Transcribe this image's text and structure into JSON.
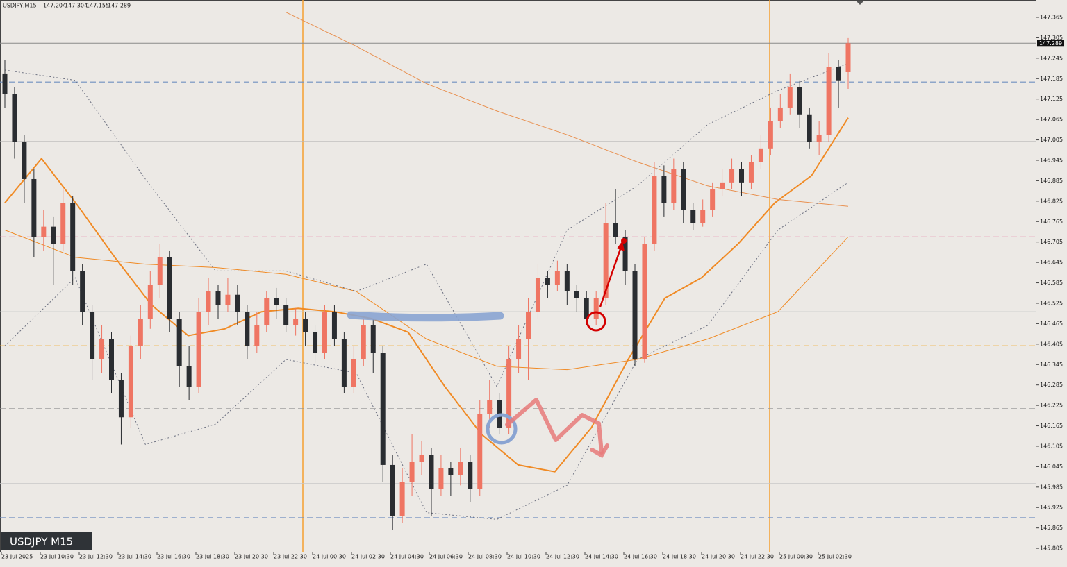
{
  "chart_data": {
    "type": "candlestick",
    "symbol": "USDJPY,M15",
    "ohlc": [
      147.204,
      147.304,
      147.155,
      147.289
    ],
    "badge": "USDJPY M15",
    "bull_color": "#ef7563",
    "bear_color": "#2a2d31",
    "ylim": [
      145.795,
      147.416
    ],
    "yticks": [
      147.365,
      147.305,
      147.245,
      147.185,
      147.125,
      147.065,
      147.005,
      146.945,
      146.885,
      146.825,
      146.765,
      146.705,
      146.645,
      146.585,
      146.525,
      146.465,
      146.405,
      146.345,
      146.285,
      146.225,
      146.165,
      146.105,
      146.045,
      145.985,
      145.925,
      145.865,
      145.805
    ],
    "time_labels": [
      "23 Jul 2025",
      "23 Jul 10:30",
      "23 Jul 12:30",
      "23 Jul 14:30",
      "23 Jul 16:30",
      "23 Jul 18:30",
      "23 Jul 20:30",
      "23 Jul 22:30",
      "24 Jul 00:30",
      "24 Jul 02:30",
      "24 Jul 04:30",
      "24 Jul 06:30",
      "24 Jul 08:30",
      "24 Jul 10:30",
      "24 Jul 12:30",
      "24 Jul 14:30",
      "24 Jul 16:30",
      "24 Jul 18:30",
      "24 Jul 20:30",
      "24 Jul 22:30",
      "25 Jul 00:30",
      "25 Jul 02:30"
    ],
    "candles": [
      [
        147.2,
        147.24,
        147.1,
        147.14
      ],
      [
        147.14,
        147.16,
        146.95,
        147.0
      ],
      [
        147.0,
        147.02,
        146.82,
        146.89
      ],
      [
        146.89,
        146.92,
        146.66,
        146.72
      ],
      [
        146.72,
        146.8,
        146.68,
        146.75
      ],
      [
        146.75,
        146.78,
        146.58,
        146.7
      ],
      [
        146.7,
        146.86,
        146.68,
        146.82
      ],
      [
        146.82,
        146.84,
        146.58,
        146.62
      ],
      [
        146.62,
        146.64,
        146.46,
        146.5
      ],
      [
        146.5,
        146.52,
        146.3,
        146.36
      ],
      [
        146.36,
        146.46,
        146.32,
        146.42
      ],
      [
        146.42,
        146.44,
        146.26,
        146.3
      ],
      [
        146.3,
        146.32,
        146.11,
        146.19
      ],
      [
        146.19,
        146.43,
        146.16,
        146.4
      ],
      [
        146.4,
        146.52,
        146.36,
        146.48
      ],
      [
        146.48,
        146.62,
        146.45,
        146.58
      ],
      [
        146.58,
        146.7,
        146.54,
        146.66
      ],
      [
        146.66,
        146.68,
        146.44,
        146.48
      ],
      [
        146.48,
        146.5,
        146.28,
        146.34
      ],
      [
        146.34,
        146.4,
        146.24,
        146.28
      ],
      [
        146.28,
        146.54,
        146.26,
        146.5
      ],
      [
        146.5,
        146.6,
        146.46,
        146.56
      ],
      [
        146.56,
        146.58,
        146.48,
        146.52
      ],
      [
        146.52,
        146.6,
        146.5,
        146.55
      ],
      [
        146.55,
        146.58,
        146.46,
        146.5
      ],
      [
        146.5,
        146.52,
        146.36,
        146.4
      ],
      [
        146.4,
        146.5,
        146.38,
        146.46
      ],
      [
        146.46,
        146.56,
        146.44,
        146.54
      ],
      [
        146.54,
        146.57,
        146.48,
        146.52
      ],
      [
        146.52,
        146.54,
        146.44,
        146.46
      ],
      [
        146.46,
        146.51,
        146.43,
        146.48
      ],
      [
        146.48,
        146.5,
        146.4,
        146.44
      ],
      [
        146.44,
        146.46,
        146.35,
        146.38
      ],
      [
        146.38,
        146.52,
        146.36,
        146.5
      ],
      [
        146.5,
        146.52,
        146.4,
        146.42
      ],
      [
        146.42,
        146.44,
        146.26,
        146.28
      ],
      [
        146.28,
        146.4,
        146.26,
        146.36
      ],
      [
        146.36,
        146.48,
        146.34,
        146.46
      ],
      [
        146.46,
        146.48,
        146.32,
        146.38
      ],
      [
        146.38,
        146.4,
        146.0,
        146.05
      ],
      [
        146.05,
        146.08,
        145.86,
        145.9
      ],
      [
        145.9,
        146.04,
        145.88,
        146.0
      ],
      [
        146.0,
        146.14,
        145.96,
        146.06
      ],
      [
        146.06,
        146.12,
        146.02,
        146.08
      ],
      [
        146.08,
        146.1,
        145.9,
        145.98
      ],
      [
        145.98,
        146.08,
        145.96,
        146.04
      ],
      [
        146.04,
        146.06,
        145.96,
        146.02
      ],
      [
        146.02,
        146.1,
        145.99,
        146.06
      ],
      [
        146.06,
        146.08,
        145.94,
        145.98
      ],
      [
        145.98,
        146.24,
        145.96,
        146.2
      ],
      [
        146.2,
        146.3,
        146.16,
        146.24
      ],
      [
        146.24,
        146.26,
        146.14,
        146.16
      ],
      [
        146.16,
        146.4,
        146.14,
        146.36
      ],
      [
        146.36,
        146.46,
        146.32,
        146.42
      ],
      [
        146.42,
        146.54,
        146.3,
        146.5
      ],
      [
        146.5,
        146.64,
        146.48,
        146.6
      ],
      [
        146.6,
        146.62,
        146.54,
        146.58
      ],
      [
        146.58,
        146.65,
        146.56,
        146.62
      ],
      [
        146.62,
        146.64,
        146.52,
        146.56
      ],
      [
        146.56,
        146.58,
        146.5,
        146.54
      ],
      [
        146.54,
        146.56,
        146.46,
        146.48
      ],
      [
        146.48,
        146.56,
        146.46,
        146.54
      ],
      [
        146.54,
        146.82,
        146.52,
        146.76
      ],
      [
        146.76,
        146.86,
        146.7,
        146.72
      ],
      [
        146.72,
        146.74,
        146.58,
        146.62
      ],
      [
        146.62,
        146.64,
        146.34,
        146.36
      ],
      [
        146.36,
        146.72,
        146.35,
        146.7
      ],
      [
        146.7,
        146.94,
        146.68,
        146.9
      ],
      [
        146.9,
        146.93,
        146.78,
        146.82
      ],
      [
        146.82,
        146.95,
        146.8,
        146.92
      ],
      [
        146.92,
        146.94,
        146.76,
        146.8
      ],
      [
        146.8,
        146.82,
        146.74,
        146.76
      ],
      [
        146.76,
        146.83,
        146.75,
        146.8
      ],
      [
        146.8,
        146.88,
        146.78,
        146.86
      ],
      [
        146.86,
        146.92,
        146.84,
        146.88
      ],
      [
        146.88,
        146.95,
        146.86,
        146.92
      ],
      [
        146.92,
        146.94,
        146.84,
        146.88
      ],
      [
        146.88,
        146.96,
        146.86,
        146.94
      ],
      [
        146.94,
        147.02,
        146.92,
        146.98
      ],
      [
        146.98,
        147.1,
        146.96,
        147.06
      ],
      [
        147.06,
        147.14,
        147.04,
        147.1
      ],
      [
        147.1,
        147.2,
        147.08,
        147.16
      ],
      [
        147.16,
        147.18,
        147.04,
        147.08
      ],
      [
        147.08,
        147.1,
        146.98,
        147.0
      ],
      [
        147.0,
        147.06,
        146.96,
        147.02
      ],
      [
        147.02,
        147.26,
        147.0,
        147.22
      ],
      [
        147.22,
        147.24,
        147.1,
        147.18
      ],
      [
        147.204,
        147.304,
        147.155,
        147.289
      ]
    ],
    "levels": [
      {
        "value": 147.175,
        "color": "#6f8fc0",
        "style": "dashed"
      },
      {
        "value": 147.0,
        "color": "#b8b8b8",
        "style": "solid"
      },
      {
        "value": 146.72,
        "color": "#e888a8",
        "style": "dashed"
      },
      {
        "value": 146.5,
        "color": "#c8c8c8",
        "style": "solid"
      },
      {
        "value": 146.4,
        "color": "#f0b040",
        "style": "dashed"
      },
      {
        "value": 146.215,
        "color": "#909090",
        "style": "dashed"
      },
      {
        "value": 145.995,
        "color": "#c8c8c8",
        "style": "solid"
      },
      {
        "value": 145.895,
        "color": "#6f8fc0",
        "style": "dashed"
      }
    ],
    "indicators": [
      {
        "color": "#f08a24",
        "width": 2,
        "style": "solid",
        "values": [
          146.82,
          146.95,
          146.81,
          146.66,
          146.52,
          146.43,
          146.45,
          146.5,
          146.51,
          146.5,
          146.48,
          146.44,
          146.28,
          146.14,
          146.05,
          146.03,
          146.16,
          146.36,
          146.54,
          146.6,
          146.7,
          146.82,
          146.9,
          147.07
        ]
      },
      {
        "color": "#f08a24",
        "width": 1,
        "style": "solid",
        "values": [
          146.74,
          146.66,
          146.64,
          146.63,
          146.61,
          146.56,
          146.42,
          146.34,
          146.33,
          146.36,
          146.42,
          146.5,
          146.72
        ]
      },
      {
        "color": "#e89050",
        "width": 1,
        "style": "solid",
        "values": [
          null,
          null,
          null,
          null,
          147.38,
          147.28,
          147.17,
          147.09,
          147.02,
          146.94,
          146.87,
          146.83,
          146.81
        ]
      },
      {
        "color": "#6c7080",
        "width": 1,
        "style": "dotted",
        "values": [
          147.21,
          147.18,
          146.89,
          146.62,
          146.62,
          146.56,
          146.64,
          146.28,
          146.74,
          146.87,
          147.05,
          147.15,
          147.23
        ]
      },
      {
        "color": "#6c7080",
        "width": 1,
        "style": "dotted",
        "values": [
          146.4,
          146.6,
          146.11,
          146.17,
          146.36,
          146.32,
          145.91,
          145.89,
          145.99,
          146.36,
          146.46,
          146.74,
          146.88
        ]
      }
    ]
  }
}
